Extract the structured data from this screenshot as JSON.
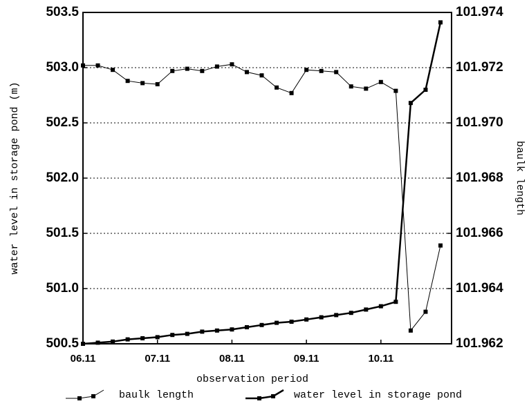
{
  "chart_data": {
    "type": "line",
    "xlabel": "observation period",
    "ylabel": "water level in storage pond (m)",
    "y2label": "baulk length",
    "categories": [
      "06.11",
      null,
      null,
      null,
      null,
      "07.11",
      null,
      null,
      null,
      null,
      "08.11",
      null,
      null,
      null,
      null,
      "09.11",
      null,
      null,
      null,
      null,
      "10.11",
      null,
      null,
      null,
      null
    ],
    "ylim": [
      500.5,
      503.5
    ],
    "yticks": [
      {
        "value": 500.5,
        "label": "500.5"
      },
      {
        "value": 501.0,
        "label": "501.0"
      },
      {
        "value": 501.5,
        "label": "501.5"
      },
      {
        "value": 502.0,
        "label": "502.0"
      },
      {
        "value": 502.5,
        "label": "502.5"
      },
      {
        "value": 503.0,
        "label": "503.0"
      },
      {
        "value": 503.5,
        "label": "503.5"
      }
    ],
    "y2lim": [
      101.962,
      101.974
    ],
    "y2ticks": [
      101.962,
      101.964,
      101.966,
      101.968,
      {
        "value": 101.97,
        "label": "101.970"
      },
      101.972,
      101.974
    ],
    "grid": true,
    "legend": "bottom",
    "series": [
      {
        "name": "baulk length",
        "color": "#000000",
        "axis": "y2",
        "values": [
          101.97208,
          101.97208,
          101.97192,
          101.97152,
          101.97144,
          101.9714,
          101.97188,
          101.97196,
          101.97188,
          101.97204,
          101.97212,
          101.97184,
          101.97172,
          101.97128,
          101.97108,
          101.97192,
          101.97188,
          101.97184,
          101.97132,
          101.97124,
          101.97148,
          101.97116,
          101.96248,
          101.96316,
          101.96556
        ]
      },
      {
        "name": "water level in storage pond",
        "color": "#000000",
        "values": [
          500.5,
          500.51,
          500.52,
          500.54,
          500.55,
          500.56,
          500.58,
          500.59,
          500.61,
          500.62,
          500.63,
          500.65,
          500.67,
          500.69,
          500.7,
          500.72,
          500.74,
          500.76,
          500.78,
          500.81,
          500.84,
          500.88,
          502.68,
          502.8,
          503.41
        ]
      }
    ]
  }
}
